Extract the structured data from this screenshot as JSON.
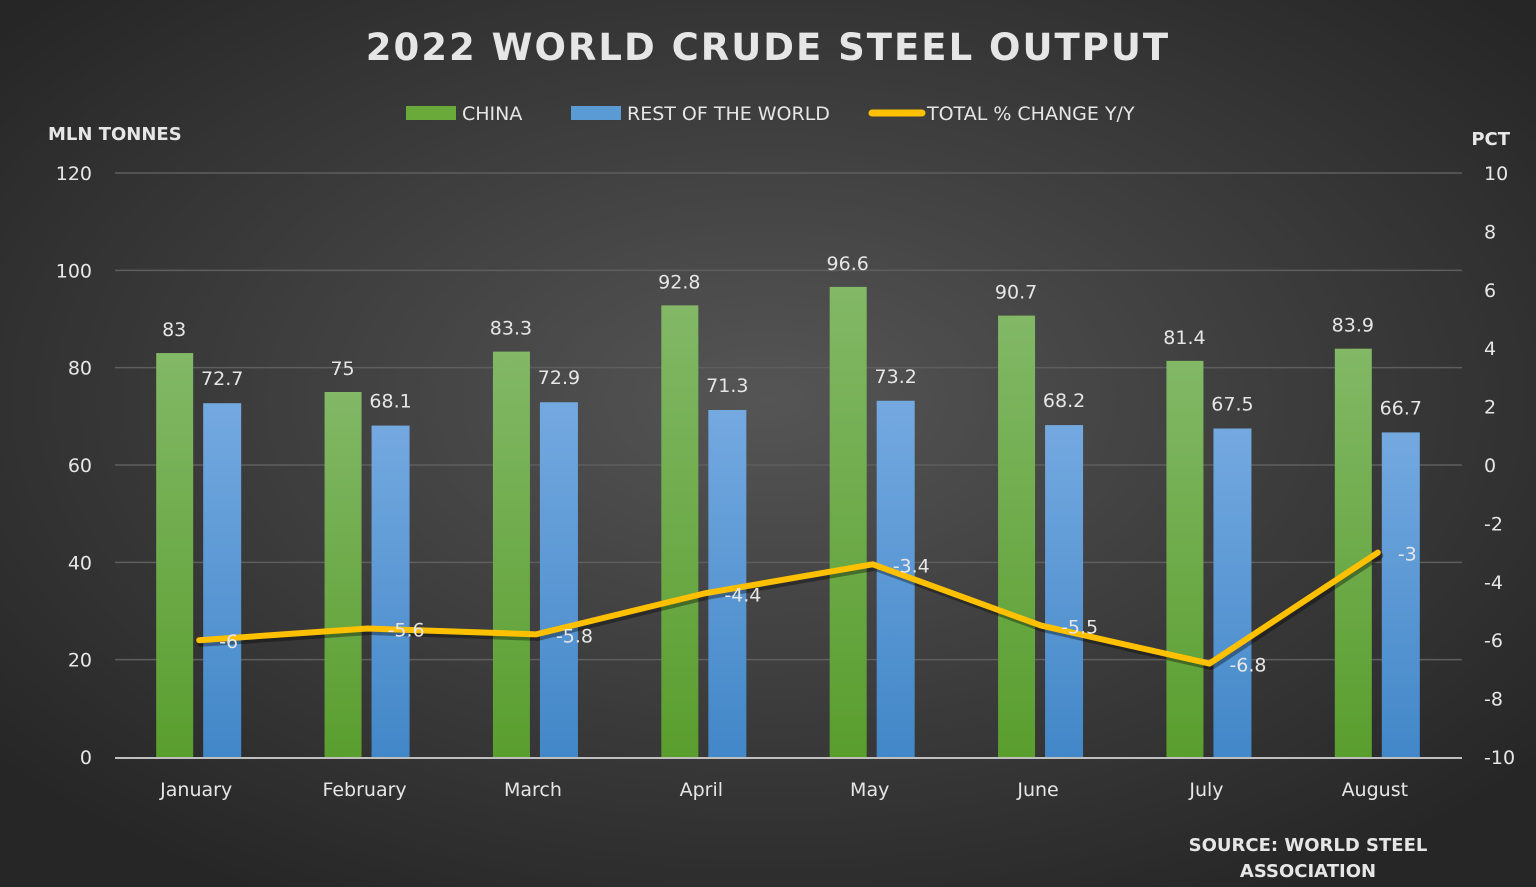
{
  "chart_data": {
    "type": "bar",
    "title": "2022 WORLD CRUDE STEEL OUTPUT",
    "ylabel": "MLN TONNES",
    "y2label": "PCT",
    "ylim": [
      0,
      120
    ],
    "y2lim": [
      -10,
      10
    ],
    "yticks": [
      0,
      20,
      40,
      60,
      80,
      100,
      120
    ],
    "y2ticks": [
      -10,
      -8,
      -6,
      -4,
      -2,
      0,
      2,
      4,
      6,
      8,
      10
    ],
    "grid": true,
    "legend_position": "top",
    "categories": [
      "January",
      "February",
      "March",
      "April",
      "May",
      "June",
      "July",
      "August"
    ],
    "series": [
      {
        "name": "CHINA",
        "type": "bar",
        "axis": "left",
        "color": "#6aaa3a",
        "values": [
          83,
          75,
          83.3,
          92.8,
          96.6,
          90.7,
          81.4,
          83.9
        ]
      },
      {
        "name": "REST OF THE WORLD",
        "type": "bar",
        "axis": "left",
        "color": "#5b9bd5",
        "values": [
          72.7,
          68.1,
          72.9,
          71.3,
          73.2,
          68.2,
          67.5,
          66.7
        ]
      },
      {
        "name": "TOTAL % CHANGE Y/Y",
        "type": "line",
        "axis": "right",
        "color": "#ffc000",
        "values": [
          -6,
          -5.6,
          -5.8,
          -4.4,
          -3.4,
          -5.5,
          -6.8,
          -3
        ]
      }
    ],
    "source": "SOURCE: WORLD STEEL ASSOCIATION",
    "source_lines": [
      "SOURCE: WORLD STEEL",
      "ASSOCIATION"
    ]
  }
}
